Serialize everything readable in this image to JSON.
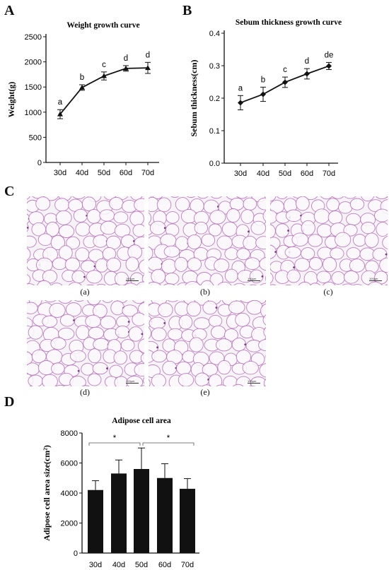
{
  "panels": {
    "A": "A",
    "B": "B",
    "C": "C",
    "D": "D"
  },
  "chart_data": [
    {
      "type": "line",
      "title": "Weight growth curve",
      "xlabel": "",
      "ylabel": "Weight(g)",
      "categories": [
        "30d",
        "40d",
        "50d",
        "60d",
        "70d"
      ],
      "values": [
        960,
        1490,
        1720,
        1870,
        1880
      ],
      "errors": [
        90,
        55,
        80,
        55,
        110
      ],
      "significance": [
        "a",
        "b",
        "c",
        "d",
        "d"
      ],
      "ylim": [
        0,
        2500
      ],
      "yticks": [
        0,
        500,
        1000,
        1500,
        2000,
        2500
      ],
      "marker": "triangle",
      "color": "#111111"
    },
    {
      "type": "line",
      "title": "Sebum thickness growth curve",
      "xlabel": "",
      "ylabel": "Sebum thickness(cm)",
      "categories": [
        "30d",
        "40d",
        "50d",
        "60d",
        "70d"
      ],
      "values": [
        0.186,
        0.212,
        0.249,
        0.275,
        0.299
      ],
      "errors": [
        0.022,
        0.022,
        0.016,
        0.016,
        0.011
      ],
      "significance": [
        "a",
        "b",
        "c",
        "d",
        "de"
      ],
      "ylim": [
        0,
        0.4
      ],
      "yticks": [
        "0.0",
        "0.1",
        "0.2",
        "0.3",
        "0.4"
      ],
      "marker": "diamond",
      "color": "#111111"
    },
    {
      "type": "bar",
      "title": "Adipose cell area",
      "xlabel": "",
      "ylabel": "Adipose cell area size(cm²)",
      "categories": [
        "30d",
        "40d",
        "50d",
        "60d",
        "70d"
      ],
      "values": [
        4200,
        5300,
        5600,
        5000,
        4280
      ],
      "errors": [
        620,
        900,
        1400,
        950,
        680
      ],
      "ylim": [
        0,
        8000
      ],
      "yticks": [
        0,
        2000,
        4000,
        6000,
        8000
      ],
      "significance_brackets": [
        {
          "from": "30d",
          "to": "50d",
          "label": "*"
        },
        {
          "from": "50d",
          "to": "70d",
          "label": "*"
        }
      ],
      "color": "#111111"
    }
  ],
  "histology": {
    "captions": [
      "(a)",
      "(b)",
      "(c)",
      "(d)",
      "(e)"
    ],
    "scale_label": "100μm",
    "stain_color": "#b56ab8",
    "background_color": "#f6f3f7"
  }
}
